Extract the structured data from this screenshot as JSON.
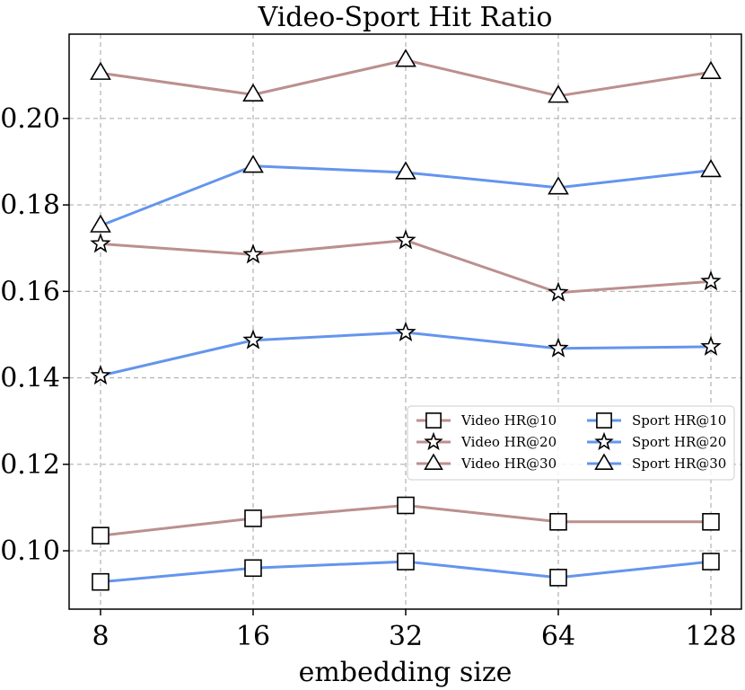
{
  "chart_data": {
    "type": "line",
    "title": "Video-Sport Hit Ratio",
    "xlabel": "embedding size",
    "ylabel": "",
    "categories": [
      "8",
      "16",
      "32",
      "64",
      "128"
    ],
    "y_ticks": [
      0.1,
      0.12,
      0.14,
      0.16,
      0.18,
      0.2
    ],
    "y_tick_labels": [
      "0.10",
      "0.12",
      "0.14",
      "0.16",
      "0.18",
      "0.20"
    ],
    "ylim": [
      0.0865,
      0.2195
    ],
    "grid": true,
    "legend_position": "center-right",
    "legend_columns": 2,
    "colors": {
      "video": "#bc8f8f",
      "sport": "#6495ed"
    },
    "series": [
      {
        "name": "Video HR@10",
        "marker": "square",
        "color": "#bc8f8f",
        "values": [
          0.1035,
          0.1075,
          0.1105,
          0.1067,
          0.1067
        ]
      },
      {
        "name": "Video HR@20",
        "marker": "star",
        "color": "#bc8f8f",
        "values": [
          0.171,
          0.1685,
          0.1718,
          0.1597,
          0.1623
        ]
      },
      {
        "name": "Video HR@30",
        "marker": "triangle",
        "color": "#bc8f8f",
        "values": [
          0.2105,
          0.2055,
          0.2135,
          0.2052,
          0.2107
        ]
      },
      {
        "name": "Sport HR@10",
        "marker": "square",
        "color": "#6495ed",
        "values": [
          0.0928,
          0.096,
          0.0975,
          0.0938,
          0.0975
        ]
      },
      {
        "name": "Sport HR@20",
        "marker": "star",
        "color": "#6495ed",
        "values": [
          0.1405,
          0.1487,
          0.1505,
          0.1468,
          0.1472
        ]
      },
      {
        "name": "Sport HR@30",
        "marker": "triangle",
        "color": "#6495ed",
        "values": [
          0.1752,
          0.189,
          0.1875,
          0.184,
          0.188
        ]
      }
    ]
  }
}
